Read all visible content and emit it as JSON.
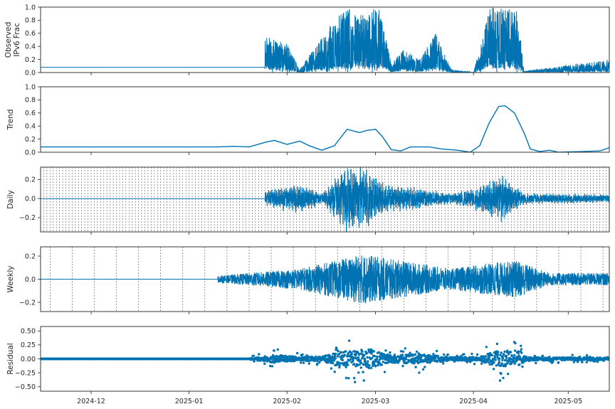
{
  "chart_data": {
    "type": "line",
    "description_free": true,
    "x_axis": {
      "range": [
        "2024-11-15",
        "2025-05-14"
      ],
      "ticks": [
        {
          "date": "2024-12-01",
          "label": "2024-12"
        },
        {
          "date": "2025-01-01",
          "label": "2025-01"
        },
        {
          "date": "2025-02-01",
          "label": "2025-02"
        },
        {
          "date": "2025-03-01",
          "label": "2025-03"
        },
        {
          "date": "2025-04-01",
          "label": "2025-04"
        },
        {
          "date": "2025-05-01",
          "label": "2025-05"
        }
      ]
    },
    "panels": [
      {
        "key": "observed",
        "ylabel_lines": [
          "Observed",
          "IPv6 Frac"
        ],
        "ylim": [
          0,
          1
        ],
        "yticks": [
          {
            "v": 0,
            "label": "0.0"
          },
          {
            "v": 0.2,
            "label": "0.2"
          },
          {
            "v": 0.4,
            "label": "0.4"
          },
          {
            "v": 0.6,
            "label": "0.6"
          },
          {
            "v": 0.8,
            "label": "0.8"
          },
          {
            "v": 1.0,
            "label": "1.0"
          }
        ],
        "style": "line",
        "vlines": "none",
        "series": {
          "baseline_until": "2025-01-25",
          "baseline_value": 0.08,
          "profile": [
            [
              "2025-01-25",
              0.55
            ],
            [
              "2025-02-01",
              0.45
            ],
            [
              "2025-02-05",
              0.05
            ],
            [
              "2025-02-15",
              0.75
            ],
            [
              "2025-02-20",
              1.0
            ],
            [
              "2025-02-25",
              0.9
            ],
            [
              "2025-03-02",
              1.0
            ],
            [
              "2025-03-06",
              0.15
            ],
            [
              "2025-03-10",
              0.35
            ],
            [
              "2025-03-15",
              0.2
            ],
            [
              "2025-03-20",
              0.6
            ],
            [
              "2025-03-25",
              0.05
            ],
            [
              "2025-04-01",
              0.0
            ],
            [
              "2025-04-06",
              1.0
            ],
            [
              "2025-04-15",
              0.95
            ],
            [
              "2025-04-17",
              0.02
            ],
            [
              "2025-05-14",
              0.2
            ]
          ]
        }
      },
      {
        "key": "trend",
        "ylabel_lines": [
          "Trend"
        ],
        "ylim": [
          0,
          1
        ],
        "yticks": [
          {
            "v": 0,
            "label": "0.0"
          },
          {
            "v": 0.2,
            "label": "0.2"
          },
          {
            "v": 0.4,
            "label": "0.4"
          },
          {
            "v": 0.6,
            "label": "0.6"
          },
          {
            "v": 0.8,
            "label": "0.8"
          },
          {
            "v": 1.0,
            "label": "1.0"
          }
        ],
        "style": "line",
        "vlines": "none",
        "series": {
          "points": [
            [
              "2024-11-15",
              0.08
            ],
            [
              "2025-01-01",
              0.08
            ],
            [
              "2025-01-10",
              0.08
            ],
            [
              "2025-01-15",
              0.09
            ],
            [
              "2025-01-20",
              0.08
            ],
            [
              "2025-01-25",
              0.15
            ],
            [
              "2025-01-28",
              0.18
            ],
            [
              "2025-02-01",
              0.12
            ],
            [
              "2025-02-05",
              0.17
            ],
            [
              "2025-02-08",
              0.1
            ],
            [
              "2025-02-12",
              0.03
            ],
            [
              "2025-02-16",
              0.1
            ],
            [
              "2025-02-20",
              0.35
            ],
            [
              "2025-02-24",
              0.3
            ],
            [
              "2025-02-26",
              0.33
            ],
            [
              "2025-03-01",
              0.35
            ],
            [
              "2025-03-03",
              0.25
            ],
            [
              "2025-03-06",
              0.04
            ],
            [
              "2025-03-09",
              0.02
            ],
            [
              "2025-03-12",
              0.08
            ],
            [
              "2025-03-18",
              0.08
            ],
            [
              "2025-03-22",
              0.05
            ],
            [
              "2025-03-27",
              0.03
            ],
            [
              "2025-03-31",
              0.0
            ],
            [
              "2025-04-03",
              0.1
            ],
            [
              "2025-04-06",
              0.45
            ],
            [
              "2025-04-09",
              0.7
            ],
            [
              "2025-04-11",
              0.71
            ],
            [
              "2025-04-14",
              0.6
            ],
            [
              "2025-04-17",
              0.3
            ],
            [
              "2025-04-19",
              0.05
            ],
            [
              "2025-04-22",
              0.01
            ],
            [
              "2025-04-25",
              0.03
            ],
            [
              "2025-04-28",
              0.0
            ],
            [
              "2025-05-05",
              0.01
            ],
            [
              "2025-05-11",
              0.02
            ],
            [
              "2025-05-14",
              0.07
            ]
          ]
        }
      },
      {
        "key": "daily",
        "ylabel_lines": [
          "Daily"
        ],
        "ylim": [
          -0.35,
          0.33
        ],
        "yticks": [
          {
            "v": -0.2,
            "label": "−0.2"
          },
          {
            "v": 0.0,
            "label": "0.0"
          },
          {
            "v": 0.2,
            "label": "0.2"
          }
        ],
        "style": "line",
        "vlines": "daily",
        "series": {
          "baseline_until": "2025-01-25",
          "baseline_value": 0.0,
          "profile": [
            [
              "2025-01-20",
              0.02
            ],
            [
              "2025-01-28",
              0.1
            ],
            [
              "2025-02-05",
              0.14
            ],
            [
              "2025-02-12",
              0.05
            ],
            [
              "2025-02-20",
              0.3
            ],
            [
              "2025-02-25",
              0.3
            ],
            [
              "2025-03-05",
              0.12
            ],
            [
              "2025-03-15",
              0.1
            ],
            [
              "2025-03-25",
              0.05
            ],
            [
              "2025-04-01",
              0.1
            ],
            [
              "2025-04-10",
              0.22
            ],
            [
              "2025-04-17",
              0.05
            ],
            [
              "2025-05-14",
              0.04
            ]
          ]
        }
      },
      {
        "key": "weekly",
        "ylabel_lines": [
          "Weekly"
        ],
        "ylim": [
          -0.28,
          0.28
        ],
        "yticks": [
          {
            "v": -0.2,
            "label": "−0.2"
          },
          {
            "v": 0.0,
            "label": "0.0"
          },
          {
            "v": 0.2,
            "label": "0.2"
          }
        ],
        "style": "line",
        "vlines": "weekly",
        "series": {
          "baseline_until": "2025-01-10",
          "baseline_value": 0.0,
          "profile": [
            [
              "2025-01-10",
              0.03
            ],
            [
              "2025-01-20",
              0.06
            ],
            [
              "2025-01-28",
              0.08
            ],
            [
              "2025-02-05",
              0.1
            ],
            [
              "2025-02-15",
              0.17
            ],
            [
              "2025-02-25",
              0.24
            ],
            [
              "2025-03-05",
              0.2
            ],
            [
              "2025-03-15",
              0.15
            ],
            [
              "2025-03-25",
              0.1
            ],
            [
              "2025-04-05",
              0.15
            ],
            [
              "2025-04-15",
              0.18
            ],
            [
              "2025-04-25",
              0.06
            ],
            [
              "2025-05-14",
              0.06
            ]
          ]
        }
      },
      {
        "key": "residual",
        "ylabel_lines": [
          "Residual"
        ],
        "ylim": [
          -0.58,
          0.58
        ],
        "yticks": [
          {
            "v": -0.5,
            "label": "−0.50"
          },
          {
            "v": -0.25,
            "label": "−0.25"
          },
          {
            "v": 0.0,
            "label": "0.00"
          },
          {
            "v": 0.25,
            "label": "0.25"
          },
          {
            "v": 0.5,
            "label": "0.50"
          }
        ],
        "style": "scatter",
        "vlines": "none",
        "series": {
          "baseline_until": "2025-01-20",
          "baseline_value": 0.0,
          "profile": [
            [
              "2025-01-20",
              0.03
            ],
            [
              "2025-01-28",
              0.2
            ],
            [
              "2025-02-05",
              0.1
            ],
            [
              "2025-02-12",
              0.12
            ],
            [
              "2025-02-20",
              0.45
            ],
            [
              "2025-02-28",
              0.5
            ],
            [
              "2025-03-05",
              0.2
            ],
            [
              "2025-03-15",
              0.25
            ],
            [
              "2025-03-25",
              0.08
            ],
            [
              "2025-04-03",
              0.1
            ],
            [
              "2025-04-08",
              0.4
            ],
            [
              "2025-04-15",
              0.35
            ],
            [
              "2025-04-18",
              0.08
            ],
            [
              "2025-05-14",
              0.06
            ]
          ]
        }
      }
    ],
    "colors": {
      "line": "#0173b2",
      "vline": "#555555",
      "axis": "#222222"
    }
  }
}
